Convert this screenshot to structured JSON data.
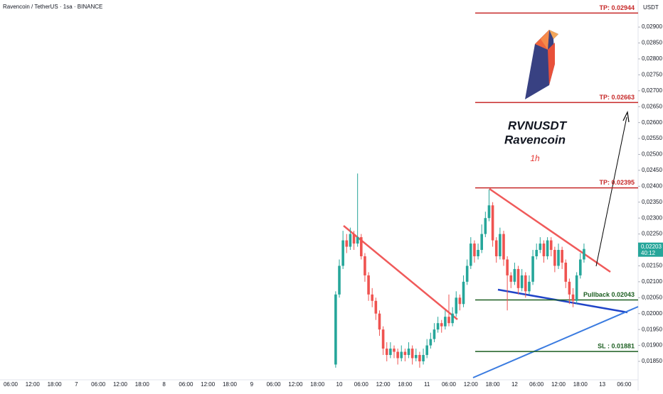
{
  "header": {
    "symbol": "Ravencoin / TetherUS · 1sa · BINANCE",
    "currency": "USDT"
  },
  "chart_data": {
    "type": "candlestick",
    "title": "RVNUSDT",
    "subtitle": "Ravencoin",
    "timeframe": "1h",
    "open": [
      0.0184,
      0.0206,
      0.0215,
      0.0223,
      0.0221,
      0.0225,
      0.0222,
      0.0224,
      0.0218,
      0.0212,
      0.0206,
      0.0204,
      0.02,
      0.0195,
      0.0189,
      0.0187,
      0.0189,
      0.0188,
      0.0186,
      0.0188,
      0.0187,
      0.0189,
      0.0186,
      0.0187,
      0.0185,
      0.0187,
      0.019,
      0.0192,
      0.0195,
      0.0197,
      0.0196,
      0.0199,
      0.0197,
      0.02,
      0.0205,
      0.0203,
      0.021,
      0.0215,
      0.0222,
      0.0218,
      0.022,
      0.0225,
      0.023,
      0.0234,
      0.0223,
      0.0218,
      0.0225,
      0.0217,
      0.0212,
      0.021,
      0.0214,
      0.0208,
      0.0212,
      0.0207,
      0.021,
      0.0218,
      0.022,
      0.0222,
      0.0218,
      0.0223,
      0.022,
      0.0215,
      0.022,
      0.0216,
      0.021,
      0.0206,
      0.0204,
      0.0212,
      0.0217
    ],
    "high": [
      0.0207,
      0.0217,
      0.0226,
      0.0225,
      0.0227,
      0.0226,
      0.0244,
      0.0225,
      0.0219,
      0.0213,
      0.0208,
      0.0205,
      0.0201,
      0.0196,
      0.0191,
      0.0191,
      0.019,
      0.0189,
      0.019,
      0.0189,
      0.0191,
      0.019,
      0.0189,
      0.0188,
      0.0189,
      0.0192,
      0.0194,
      0.0197,
      0.0199,
      0.0198,
      0.0201,
      0.0206,
      0.0202,
      0.0207,
      0.0206,
      0.0212,
      0.0217,
      0.0224,
      0.0223,
      0.0222,
      0.0228,
      0.0232,
      0.0239,
      0.0235,
      0.0224,
      0.0227,
      0.0226,
      0.0218,
      0.0213,
      0.0216,
      0.0215,
      0.0214,
      0.0213,
      0.0212,
      0.022,
      0.0222,
      0.0224,
      0.0223,
      0.0224,
      0.0224,
      0.0221,
      0.0222,
      0.0221,
      0.0217,
      0.0211,
      0.0208,
      0.0213,
      0.0219,
      0.0222
    ],
    "low": [
      0.0183,
      0.0205,
      0.0214,
      0.0219,
      0.022,
      0.022,
      0.0221,
      0.0217,
      0.021,
      0.0204,
      0.0202,
      0.0198,
      0.0193,
      0.0187,
      0.0185,
      0.0186,
      0.0186,
      0.0184,
      0.0185,
      0.0185,
      0.0186,
      0.0184,
      0.0185,
      0.0183,
      0.0184,
      0.0186,
      0.0189,
      0.0191,
      0.0194,
      0.0194,
      0.0195,
      0.0196,
      0.0196,
      0.0199,
      0.0201,
      0.0202,
      0.0209,
      0.0214,
      0.0216,
      0.0217,
      0.0219,
      0.0224,
      0.0229,
      0.0221,
      0.0216,
      0.0217,
      0.0215,
      0.0201,
      0.0208,
      0.0209,
      0.0206,
      0.0207,
      0.0205,
      0.0206,
      0.0209,
      0.0217,
      0.0219,
      0.0216,
      0.0217,
      0.0218,
      0.0213,
      0.0214,
      0.0214,
      0.0208,
      0.0203,
      0.0202,
      0.0203,
      0.0211,
      0.0216
    ],
    "close": [
      0.0206,
      0.0215,
      0.0223,
      0.0221,
      0.0225,
      0.0222,
      0.0224,
      0.0218,
      0.0212,
      0.0206,
      0.0204,
      0.02,
      0.0195,
      0.0189,
      0.0187,
      0.0189,
      0.0188,
      0.0186,
      0.0188,
      0.0187,
      0.0189,
      0.0186,
      0.0187,
      0.0185,
      0.0187,
      0.019,
      0.0192,
      0.0195,
      0.0197,
      0.0196,
      0.0199,
      0.0197,
      0.02,
      0.0205,
      0.0203,
      0.021,
      0.0215,
      0.0222,
      0.0218,
      0.022,
      0.0225,
      0.023,
      0.0234,
      0.0223,
      0.0218,
      0.0225,
      0.0217,
      0.0212,
      0.021,
      0.0214,
      0.0208,
      0.0212,
      0.0207,
      0.021,
      0.0218,
      0.022,
      0.0222,
      0.0218,
      0.0223,
      0.022,
      0.0215,
      0.022,
      0.0216,
      0.021,
      0.0206,
      0.0204,
      0.0212,
      0.0217,
      0.02203
    ],
    "up_color": "#26a69a",
    "down_color": "#ef5350",
    "xticks": [
      "06:00",
      "12:00",
      "18:00",
      "7",
      "06:00",
      "12:00",
      "18:00",
      "8",
      "06:00",
      "12:00",
      "18:00",
      "9",
      "06:00",
      "12:00",
      "18:00",
      "10",
      "06:00",
      "12:00",
      "18:00",
      "11",
      "06:00",
      "12:00",
      "18:00",
      "12",
      "06:00",
      "12:00",
      "18:00",
      "13",
      "06:00"
    ],
    "ylim": [
      0.01792,
      0.02985
    ],
    "yticks": [
      {
        "value": 0.0185,
        "label": "0,01850"
      },
      {
        "value": 0.019,
        "label": "0,01900"
      },
      {
        "value": 0.0195,
        "label": "0,01950"
      },
      {
        "value": 0.02,
        "label": "0,02000"
      },
      {
        "value": 0.0205,
        "label": "0,02050"
      },
      {
        "value": 0.021,
        "label": "0,02100"
      },
      {
        "value": 0.0215,
        "label": "0,02150"
      },
      {
        "value": 0.022,
        "label": "0,02200"
      },
      {
        "value": 0.0225,
        "label": "0,02250"
      },
      {
        "value": 0.023,
        "label": "0,02300"
      },
      {
        "value": 0.0235,
        "label": "0,02350"
      },
      {
        "value": 0.024,
        "label": "0,02400"
      },
      {
        "value": 0.0245,
        "label": "0,02450"
      },
      {
        "value": 0.025,
        "label": "0,02500"
      },
      {
        "value": 0.0255,
        "label": "0,02550"
      },
      {
        "value": 0.026,
        "label": "0,02600"
      },
      {
        "value": 0.0265,
        "label": "0,02650"
      },
      {
        "value": 0.027,
        "label": "0,02700"
      },
      {
        "value": 0.0275,
        "label": "0,02750"
      },
      {
        "value": 0.028,
        "label": "0,02800"
      },
      {
        "value": 0.0285,
        "label": "0,02850"
      },
      {
        "value": 0.029,
        "label": "0,02900"
      }
    ],
    "levels": [
      {
        "value": 0.02944,
        "label": "TP: 0.02944",
        "color": "#c62828"
      },
      {
        "value": 0.02663,
        "label": "TP: 0.02663",
        "color": "#c62828"
      },
      {
        "value": 0.02395,
        "label": "TP: 0.02395",
        "color": "#c62828"
      },
      {
        "value": 0.02043,
        "label": "Pullback 0.02043",
        "color": "#1b5e20"
      },
      {
        "value": 0.01881,
        "label": "SL : 0.01881",
        "color": "#1b5e20"
      }
    ],
    "last_price": {
      "value": 0.02203,
      "label": "0,02203"
    },
    "countdown": "40:12"
  }
}
